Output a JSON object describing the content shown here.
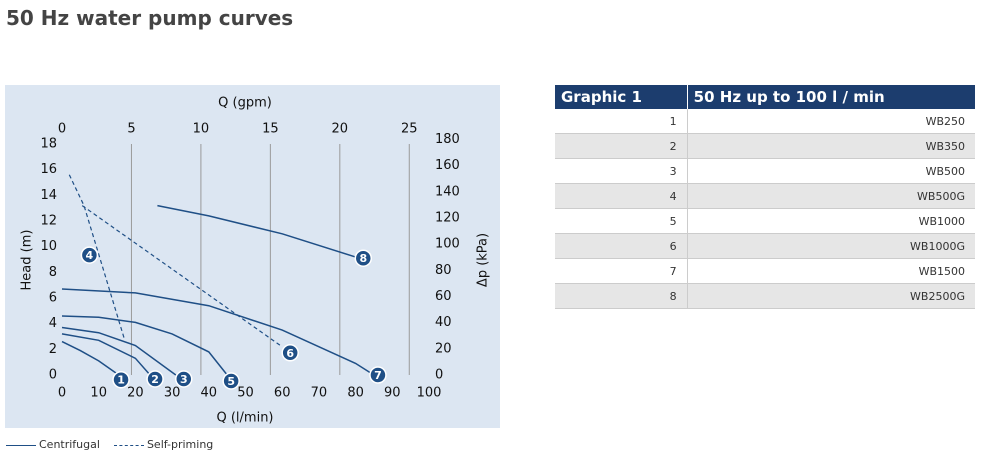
{
  "page_title": "50 Hz water pump curves",
  "chart_data": {
    "type": "line",
    "x_label": "Q (l/min)",
    "y_label": "Head (m)",
    "x2_label": "Q (gpm)",
    "y2_label": "Δp (kPa)",
    "xlim": [
      0,
      100
    ],
    "xticks": [
      0,
      10,
      20,
      30,
      40,
      50,
      60,
      70,
      80,
      90,
      100
    ],
    "ylim": [
      0,
      18
    ],
    "yticks": [
      0,
      2,
      4,
      6,
      8,
      10,
      12,
      14,
      16,
      18
    ],
    "x2lim": [
      0,
      26.42
    ],
    "x2ticks": [
      0,
      5,
      10,
      15,
      20,
      25
    ],
    "y2lim": [
      0,
      176.5
    ],
    "y2ticks": [
      0,
      20,
      40,
      60,
      80,
      100,
      120,
      140,
      160,
      180
    ],
    "grid": true,
    "color": "#1f4f86",
    "legend": [
      {
        "label": "Centrifugal",
        "style": "solid"
      },
      {
        "label": "Self-priming",
        "style": "dashed"
      }
    ],
    "series": [
      {
        "name": "1",
        "style": "solid",
        "x": [
          0,
          5,
          10,
          15
        ],
        "values": [
          2.6,
          1.9,
          1.1,
          0.1
        ]
      },
      {
        "name": "2",
        "style": "solid",
        "x": [
          0,
          10,
          20,
          24
        ],
        "values": [
          3.2,
          2.7,
          1.3,
          0
        ]
      },
      {
        "name": "3",
        "style": "solid",
        "x": [
          0,
          10,
          20,
          31
        ],
        "values": [
          3.7,
          3.3,
          2.3,
          0
        ]
      },
      {
        "name": "4",
        "style": "dashed",
        "x": [
          2,
          6,
          17
        ],
        "values": [
          15.6,
          13.2,
          2.8
        ]
      },
      {
        "name": "5",
        "style": "solid",
        "x": [
          0,
          10,
          20,
          30,
          40,
          45
        ],
        "values": [
          4.6,
          4.5,
          4.1,
          3.2,
          1.8,
          0
        ]
      },
      {
        "name": "6",
        "style": "dashed",
        "x": [
          5.5,
          60
        ],
        "values": [
          13.2,
          2.2
        ]
      },
      {
        "name": "7",
        "style": "solid",
        "x": [
          0,
          20,
          40,
          60,
          80,
          85
        ],
        "values": [
          6.7,
          6.4,
          5.4,
          3.5,
          0.9,
          0
        ]
      },
      {
        "name": "8",
        "style": "solid",
        "x": [
          26,
          40,
          60,
          81
        ],
        "values": [
          13.2,
          12.4,
          11.0,
          9.1
        ]
      }
    ]
  },
  "table": {
    "header": [
      "Graphic 1",
      "50 Hz up to 100 l / min"
    ],
    "rows": [
      [
        "1",
        "WB250"
      ],
      [
        "2",
        "WB350"
      ],
      [
        "3",
        "WB500"
      ],
      [
        "4",
        "WB500G"
      ],
      [
        "5",
        "WB1000"
      ],
      [
        "6",
        "WB1000G"
      ],
      [
        "7",
        "WB1500"
      ],
      [
        "8",
        "WB2500G"
      ]
    ]
  }
}
